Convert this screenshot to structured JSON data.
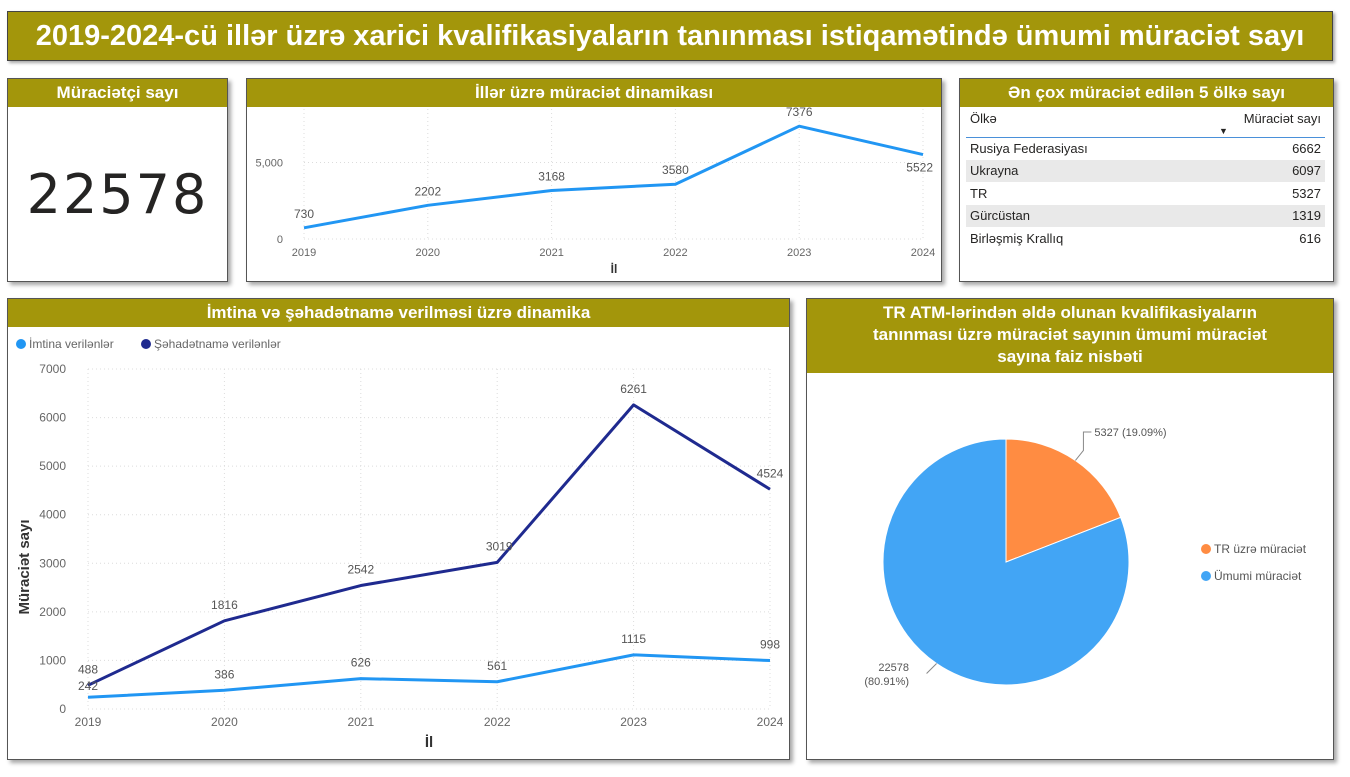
{
  "title": "2019-2024-cü illər üzrə xarici kvalifikasiyaların tanınması istiqamətində ümumi müraciət sayı",
  "kpi": {
    "header": "Müraciətçi sayı",
    "value": "22578"
  },
  "colors": {
    "header_bg": "#a3960b",
    "line_blue": "#2196f3",
    "navy": "#1f2a8f",
    "pie_orange": "#ff8c42",
    "pie_blue": "#42a5f5"
  },
  "top_countries": {
    "header": "Ən çox müraciət edilən 5 ölkə sayı",
    "columns": [
      "Ölkə",
      "Müraciət sayı"
    ],
    "rows": [
      {
        "country": "Rusiya Federasiyası",
        "count": "6662"
      },
      {
        "country": "Ukrayna",
        "count": "6097"
      },
      {
        "country": "TR",
        "count": "5327"
      },
      {
        "country": "Gürcüstan",
        "count": "1319"
      },
      {
        "country": "Birləşmiş Krallıq",
        "count": "616"
      }
    ]
  },
  "chart_data": [
    {
      "type": "line",
      "title": "İllər üzrə müraciət dinamikası",
      "x": [
        "2019",
        "2020",
        "2021",
        "2022",
        "2023",
        "2024"
      ],
      "values": [
        730,
        2202,
        3168,
        3580,
        7376,
        5522
      ],
      "xlabel": "İl",
      "ylabel": "",
      "ylim": [
        0,
        8500
      ],
      "yticks": [
        0,
        5000
      ],
      "ytick_labels": [
        "0",
        "5,000"
      ]
    },
    {
      "type": "line",
      "title": "İmtina və şəhadətnamə verilməsi üzrə dinamika",
      "x": [
        "2019",
        "2020",
        "2021",
        "2022",
        "2023",
        "2024"
      ],
      "series": [
        {
          "name": "İmtina verilənlər",
          "values": [
            242,
            386,
            626,
            561,
            1115,
            998
          ]
        },
        {
          "name": "Şəhadətnamə verilənlər",
          "values": [
            488,
            1816,
            2542,
            3019,
            6261,
            4524
          ]
        }
      ],
      "xlabel": "İl",
      "ylabel": "Müraciət sayı",
      "ylim": [
        0,
        7000
      ],
      "yticks": [
        0,
        1000,
        2000,
        3000,
        4000,
        5000,
        6000,
        7000
      ],
      "legend": "top-left"
    },
    {
      "type": "pie",
      "title": "TR ATM-lərindən əldə olunan kvalifikasiyaların tanınması üzrə müraciət sayının ümumi müraciət sayına faiz nisbəti",
      "title_lines": [
        "TR ATM-lərindən əldə olunan kvalifikasiyaların",
        "tanınması üzrə müraciət sayının ümumi müraciət",
        "sayına faiz nisbəti"
      ],
      "slices": [
        {
          "name": "TR üzrə müraciət",
          "value": 5327,
          "label": "5327 (19.09%)"
        },
        {
          "name": "Ümumi müraciət",
          "value": 22578,
          "label_line1": "22578",
          "label_line2": "(80.91%)"
        }
      ],
      "legend": "right"
    }
  ]
}
